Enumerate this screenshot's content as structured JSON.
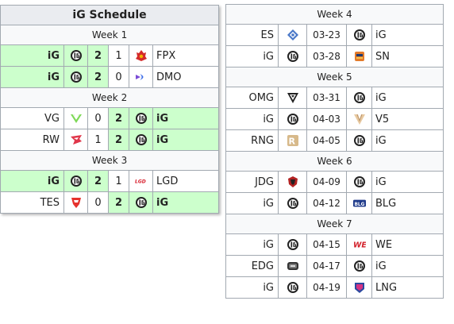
{
  "left": {
    "title": "iG Schedule",
    "weeks": [
      {
        "label": "Week 1",
        "matches": [
          {
            "t1": "iG",
            "l1": "ig",
            "s1": "2",
            "s2": "1",
            "l2": "fpx",
            "t2": "FPX",
            "win": "left"
          },
          {
            "t1": "iG",
            "l1": "ig",
            "s1": "2",
            "s2": "0",
            "l2": "dmo",
            "t2": "DMO",
            "win": "left"
          }
        ]
      },
      {
        "label": "Week 2",
        "matches": [
          {
            "t1": "VG",
            "l1": "vg",
            "s1": "0",
            "s2": "2",
            "l2": "ig",
            "t2": "iG",
            "win": "right"
          },
          {
            "t1": "RW",
            "l1": "rw",
            "s1": "1",
            "s2": "2",
            "l2": "ig",
            "t2": "iG",
            "win": "right"
          }
        ]
      },
      {
        "label": "Week 3",
        "matches": [
          {
            "t1": "iG",
            "l1": "ig",
            "s1": "2",
            "s2": "1",
            "l2": "lgd",
            "t2": "LGD",
            "win": "left"
          },
          {
            "t1": "TES",
            "l1": "tes",
            "s1": "0",
            "s2": "2",
            "l2": "ig",
            "t2": "iG",
            "win": "right"
          }
        ]
      }
    ]
  },
  "right": {
    "weeks": [
      {
        "label": "Week 4",
        "matches": [
          {
            "t1": "ES",
            "l1": "es",
            "date": "03-23",
            "l2": "ig",
            "t2": "iG"
          },
          {
            "t1": "iG",
            "l1": "ig",
            "date": "03-28",
            "l2": "sn",
            "t2": "SN"
          }
        ]
      },
      {
        "label": "Week 5",
        "matches": [
          {
            "t1": "OMG",
            "l1": "omg",
            "date": "03-31",
            "l2": "ig",
            "t2": "iG"
          },
          {
            "t1": "iG",
            "l1": "ig",
            "date": "04-03",
            "l2": "v5",
            "t2": "V5"
          },
          {
            "t1": "RNG",
            "l1": "rng",
            "date": "04-05",
            "l2": "ig",
            "t2": "iG"
          }
        ]
      },
      {
        "label": "Week 6",
        "matches": [
          {
            "t1": "JDG",
            "l1": "jdg",
            "date": "04-09",
            "l2": "ig",
            "t2": "iG"
          },
          {
            "t1": "iG",
            "l1": "ig",
            "date": "04-12",
            "l2": "blg",
            "t2": "BLG"
          }
        ]
      },
      {
        "label": "Week 7",
        "matches": [
          {
            "t1": "iG",
            "l1": "ig",
            "date": "04-15",
            "l2": "we",
            "t2": "WE"
          },
          {
            "t1": "EDG",
            "l1": "edg",
            "date": "04-17",
            "l2": "ig",
            "t2": "iG"
          },
          {
            "t1": "iG",
            "l1": "ig",
            "date": "04-19",
            "l2": "lng",
            "t2": "LNG"
          }
        ]
      }
    ]
  },
  "colors": {
    "win_bg": "#ccffcc",
    "header_bg": "#eaecf0",
    "week_bg": "#f8f9fa",
    "border": "#a2a9b1"
  }
}
